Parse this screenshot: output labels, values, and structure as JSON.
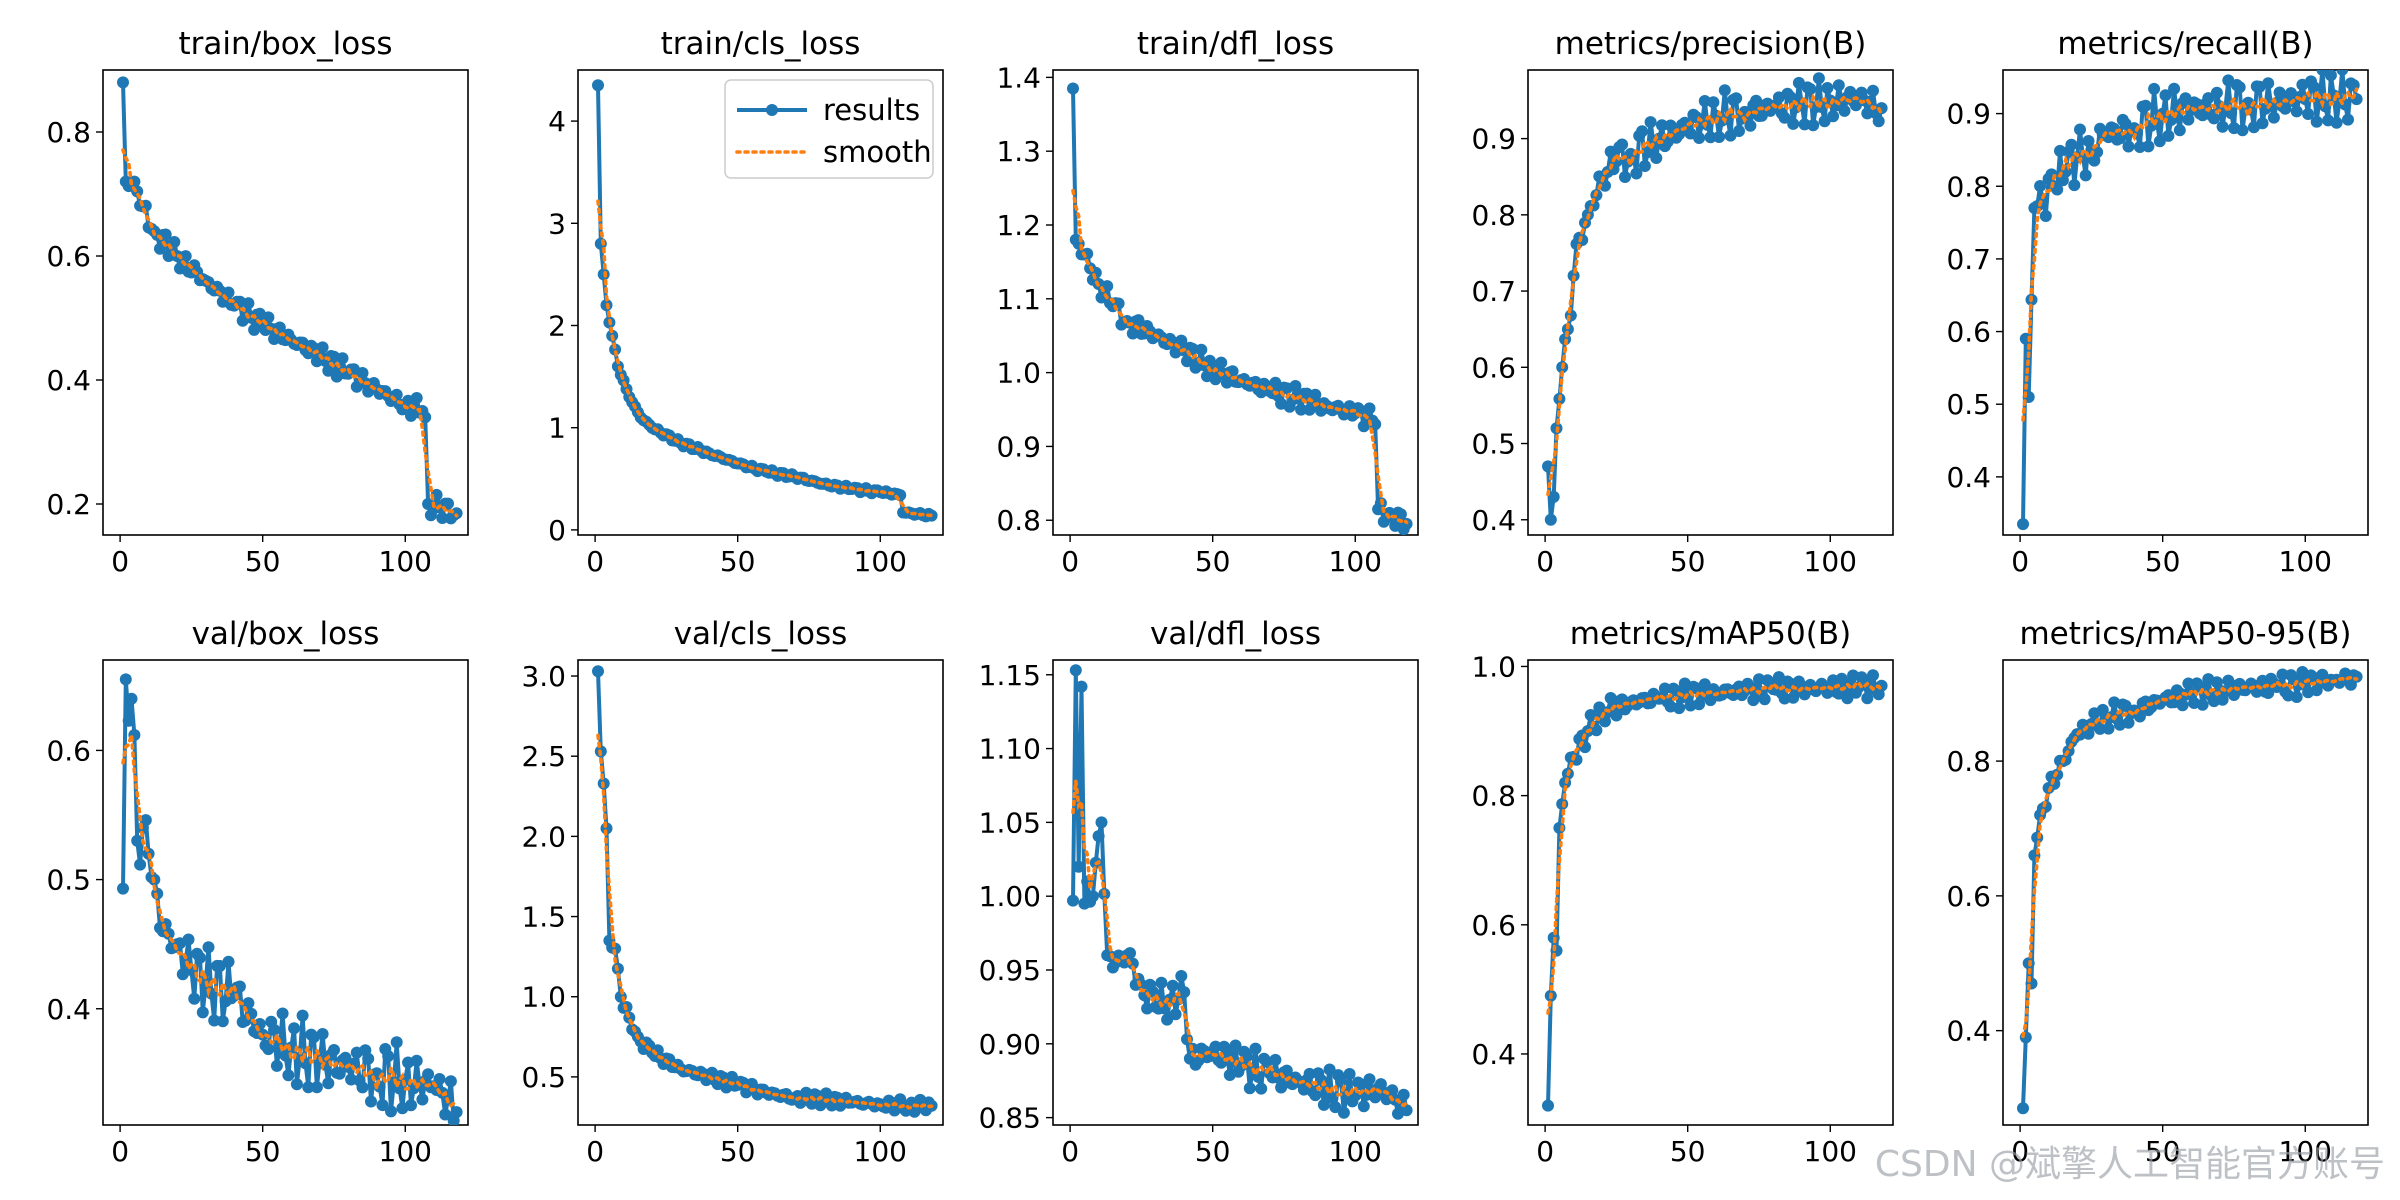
{
  "watermark": "CSDN @斌擎人工智能官方账号",
  "legend": {
    "results": "results",
    "smooth": "smooth"
  },
  "colors": {
    "results": "#1f77b4",
    "smooth": "#ff7f0e"
  },
  "chart_data": [
    {
      "type": "line",
      "title": "train/box_loss",
      "xlim": [
        -6,
        122
      ],
      "ylim": [
        0.15,
        0.9
      ],
      "xticks": [
        0,
        50,
        100
      ],
      "yticks": [
        0.2,
        0.4,
        0.6,
        0.8
      ],
      "ytick_labels": [
        "0.2",
        "0.4",
        "0.6",
        "0.8"
      ],
      "legend": false,
      "anchors": [
        [
          1,
          0.88
        ],
        [
          2,
          0.72
        ],
        [
          5,
          0.72
        ],
        [
          8,
          0.68
        ],
        [
          12,
          0.64
        ],
        [
          20,
          0.6
        ],
        [
          30,
          0.56
        ],
        [
          40,
          0.52
        ],
        [
          50,
          0.49
        ],
        [
          60,
          0.465
        ],
        [
          70,
          0.44
        ],
        [
          80,
          0.41
        ],
        [
          90,
          0.385
        ],
        [
          100,
          0.36
        ],
        [
          106,
          0.35
        ],
        [
          107,
          0.34
        ],
        [
          108,
          0.2
        ],
        [
          112,
          0.195
        ],
        [
          118,
          0.185
        ]
      ],
      "noise": 0.012
    },
    {
      "type": "line",
      "title": "train/cls_loss",
      "xlim": [
        -6,
        122
      ],
      "ylim": [
        -0.05,
        4.5
      ],
      "xticks": [
        0,
        50,
        100
      ],
      "yticks": [
        0,
        1,
        2,
        3,
        4
      ],
      "ytick_labels": [
        "0",
        "1",
        "2",
        "3",
        "4"
      ],
      "legend": true,
      "anchors": [
        [
          1,
          4.35
        ],
        [
          2,
          2.8
        ],
        [
          3,
          2.5
        ],
        [
          4,
          2.2
        ],
        [
          6,
          1.9
        ],
        [
          8,
          1.6
        ],
        [
          12,
          1.3
        ],
        [
          16,
          1.1
        ],
        [
          20,
          1.0
        ],
        [
          30,
          0.85
        ],
        [
          40,
          0.75
        ],
        [
          50,
          0.65
        ],
        [
          60,
          0.57
        ],
        [
          70,
          0.52
        ],
        [
          80,
          0.45
        ],
        [
          90,
          0.4
        ],
        [
          100,
          0.37
        ],
        [
          106,
          0.35
        ],
        [
          107,
          0.34
        ],
        [
          108,
          0.17
        ],
        [
          118,
          0.14
        ]
      ],
      "noise": 0.015
    },
    {
      "type": "line",
      "title": "train/dfl_loss",
      "xlim": [
        -6,
        122
      ],
      "ylim": [
        0.78,
        1.41
      ],
      "xticks": [
        0,
        50,
        100
      ],
      "yticks": [
        0.8,
        0.9,
        1.0,
        1.1,
        1.2,
        1.3,
        1.4
      ],
      "ytick_labels": [
        "0.8",
        "0.9",
        "1.0",
        "1.1",
        "1.2",
        "1.3",
        "1.4"
      ],
      "legend": false,
      "anchors": [
        [
          1,
          1.385
        ],
        [
          2,
          1.18
        ],
        [
          5,
          1.16
        ],
        [
          10,
          1.12
        ],
        [
          15,
          1.09
        ],
        [
          20,
          1.07
        ],
        [
          30,
          1.05
        ],
        [
          40,
          1.03
        ],
        [
          50,
          1.005
        ],
        [
          60,
          0.99
        ],
        [
          70,
          0.975
        ],
        [
          80,
          0.965
        ],
        [
          90,
          0.955
        ],
        [
          100,
          0.945
        ],
        [
          106,
          0.935
        ],
        [
          107,
          0.93
        ],
        [
          108,
          0.815
        ],
        [
          112,
          0.81
        ],
        [
          118,
          0.795
        ]
      ],
      "noise": 0.01
    },
    {
      "type": "line",
      "title": "metrics/precision(B)",
      "xlim": [
        -6,
        122
      ],
      "ylim": [
        0.38,
        0.99
      ],
      "xticks": [
        0,
        50,
        100
      ],
      "yticks": [
        0.4,
        0.5,
        0.6,
        0.7,
        0.8,
        0.9
      ],
      "ytick_labels": [
        "0.4",
        "0.5",
        "0.6",
        "0.7",
        "0.8",
        "0.9"
      ],
      "legend": false,
      "anchors": [
        [
          1,
          0.47
        ],
        [
          2,
          0.4
        ],
        [
          3,
          0.43
        ],
        [
          4,
          0.52
        ],
        [
          6,
          0.6
        ],
        [
          8,
          0.65
        ],
        [
          10,
          0.72
        ],
        [
          12,
          0.77
        ],
        [
          15,
          0.8
        ],
        [
          20,
          0.85
        ],
        [
          25,
          0.87
        ],
        [
          30,
          0.88
        ],
        [
          40,
          0.9
        ],
        [
          50,
          0.915
        ],
        [
          60,
          0.93
        ],
        [
          70,
          0.935
        ],
        [
          80,
          0.94
        ],
        [
          90,
          0.945
        ],
        [
          100,
          0.95
        ],
        [
          110,
          0.952
        ],
        [
          118,
          0.94
        ]
      ],
      "noise": 0.02
    },
    {
      "type": "line",
      "title": "metrics/recall(B)",
      "xlim": [
        -6,
        122
      ],
      "ylim": [
        0.32,
        0.96
      ],
      "xticks": [
        0,
        50,
        100
      ],
      "yticks": [
        0.4,
        0.5,
        0.6,
        0.7,
        0.8,
        0.9
      ],
      "ytick_labels": [
        "0.4",
        "0.5",
        "0.6",
        "0.7",
        "0.8",
        "0.9"
      ],
      "legend": false,
      "anchors": [
        [
          1,
          0.335
        ],
        [
          2,
          0.59
        ],
        [
          3,
          0.51
        ],
        [
          5,
          0.77
        ],
        [
          8,
          0.78
        ],
        [
          12,
          0.8
        ],
        [
          16,
          0.82
        ],
        [
          20,
          0.84
        ],
        [
          25,
          0.85
        ],
        [
          30,
          0.87
        ],
        [
          40,
          0.88
        ],
        [
          50,
          0.9
        ],
        [
          60,
          0.905
        ],
        [
          70,
          0.91
        ],
        [
          80,
          0.915
        ],
        [
          90,
          0.915
        ],
        [
          100,
          0.92
        ],
        [
          110,
          0.925
        ],
        [
          118,
          0.92
        ]
      ],
      "noise": 0.025
    },
    {
      "type": "line",
      "title": "val/box_loss",
      "xlim": [
        -6,
        122
      ],
      "ylim": [
        0.31,
        0.67
      ],
      "xticks": [
        0,
        50,
        100
      ],
      "yticks": [
        0.4,
        0.5,
        0.6
      ],
      "ytick_labels": [
        "0.4",
        "0.5",
        "0.6"
      ],
      "legend": false,
      "anchors": [
        [
          1,
          0.493
        ],
        [
          2,
          0.655
        ],
        [
          4,
          0.64
        ],
        [
          6,
          0.53
        ],
        [
          8,
          0.54
        ],
        [
          10,
          0.52
        ],
        [
          12,
          0.5
        ],
        [
          15,
          0.46
        ],
        [
          20,
          0.45
        ],
        [
          25,
          0.43
        ],
        [
          30,
          0.42
        ],
        [
          40,
          0.41
        ],
        [
          50,
          0.38
        ],
        [
          60,
          0.37
        ],
        [
          70,
          0.36
        ],
        [
          80,
          0.355
        ],
        [
          90,
          0.35
        ],
        [
          100,
          0.345
        ],
        [
          110,
          0.34
        ],
        [
          115,
          0.33
        ],
        [
          118,
          0.32
        ]
      ],
      "noise": 0.018
    },
    {
      "type": "line",
      "title": "val/cls_loss",
      "xlim": [
        -6,
        122
      ],
      "ylim": [
        0.2,
        3.1
      ],
      "xticks": [
        0,
        50,
        100
      ],
      "yticks": [
        0.5,
        1.0,
        1.5,
        2.0,
        2.5,
        3.0
      ],
      "ytick_labels": [
        "0.5",
        "1.0",
        "1.5",
        "2.0",
        "2.5",
        "3.0"
      ],
      "legend": false,
      "anchors": [
        [
          1,
          3.03
        ],
        [
          2,
          2.53
        ],
        [
          3,
          2.33
        ],
        [
          4,
          2.05
        ],
        [
          5,
          1.35
        ],
        [
          7,
          1.3
        ],
        [
          9,
          1.0
        ],
        [
          12,
          0.87
        ],
        [
          15,
          0.75
        ],
        [
          20,
          0.65
        ],
        [
          30,
          0.55
        ],
        [
          40,
          0.5
        ],
        [
          50,
          0.45
        ],
        [
          60,
          0.4
        ],
        [
          70,
          0.37
        ],
        [
          80,
          0.36
        ],
        [
          90,
          0.34
        ],
        [
          100,
          0.33
        ],
        [
          110,
          0.32
        ],
        [
          118,
          0.32
        ]
      ],
      "noise": 0.025
    },
    {
      "type": "line",
      "title": "val/dfl_loss",
      "xlim": [
        -6,
        122
      ],
      "ylim": [
        0.845,
        1.16
      ],
      "xticks": [
        0,
        50,
        100
      ],
      "yticks": [
        0.85,
        0.9,
        0.95,
        1.0,
        1.05,
        1.1,
        1.15
      ],
      "ytick_labels": [
        "0.85",
        "0.90",
        "0.95",
        "1.00",
        "1.05",
        "1.10",
        "1.15"
      ],
      "legend": false,
      "anchors": [
        [
          1,
          0.997
        ],
        [
          2,
          1.153
        ],
        [
          3,
          1.02
        ],
        [
          4,
          1.142
        ],
        [
          5,
          0.995
        ],
        [
          8,
          1.0
        ],
        [
          11,
          1.05
        ],
        [
          13,
          0.96
        ],
        [
          16,
          0.955
        ],
        [
          20,
          0.96
        ],
        [
          25,
          0.94
        ],
        [
          30,
          0.925
        ],
        [
          35,
          0.93
        ],
        [
          40,
          0.935
        ],
        [
          42,
          0.89
        ],
        [
          50,
          0.895
        ],
        [
          60,
          0.885
        ],
        [
          70,
          0.88
        ],
        [
          80,
          0.875
        ],
        [
          90,
          0.87
        ],
        [
          100,
          0.865
        ],
        [
          108,
          0.87
        ],
        [
          112,
          0.865
        ],
        [
          118,
          0.855
        ]
      ],
      "noise": 0.009
    },
    {
      "type": "line",
      "title": "metrics/mAP50(B)",
      "xlim": [
        -6,
        122
      ],
      "ylim": [
        0.29,
        1.01
      ],
      "xticks": [
        0,
        50,
        100
      ],
      "yticks": [
        0.4,
        0.6,
        0.8,
        1.0
      ],
      "ytick_labels": [
        "0.4",
        "0.6",
        "0.8",
        "1.0"
      ],
      "legend": false,
      "anchors": [
        [
          1,
          0.32
        ],
        [
          2,
          0.49
        ],
        [
          3,
          0.58
        ],
        [
          4,
          0.56
        ],
        [
          5,
          0.75
        ],
        [
          7,
          0.82
        ],
        [
          10,
          0.86
        ],
        [
          15,
          0.9
        ],
        [
          20,
          0.93
        ],
        [
          30,
          0.945
        ],
        [
          40,
          0.95
        ],
        [
          50,
          0.955
        ],
        [
          60,
          0.96
        ],
        [
          70,
          0.962
        ],
        [
          80,
          0.965
        ],
        [
          90,
          0.965
        ],
        [
          100,
          0.968
        ],
        [
          110,
          0.968
        ],
        [
          118,
          0.97
        ]
      ],
      "noise": 0.012
    },
    {
      "type": "line",
      "title": "metrics/mAP50-95(B)",
      "xlim": [
        -6,
        122
      ],
      "ylim": [
        0.26,
        0.95
      ],
      "xticks": [
        0,
        50,
        100
      ],
      "yticks": [
        0.4,
        0.6,
        0.8
      ],
      "ytick_labels": [
        "0.4",
        "0.6",
        "0.8"
      ],
      "legend": false,
      "anchors": [
        [
          1,
          0.285
        ],
        [
          2,
          0.39
        ],
        [
          3,
          0.5
        ],
        [
          4,
          0.47
        ],
        [
          5,
          0.66
        ],
        [
          7,
          0.72
        ],
        [
          10,
          0.76
        ],
        [
          15,
          0.8
        ],
        [
          20,
          0.84
        ],
        [
          25,
          0.855
        ],
        [
          30,
          0.865
        ],
        [
          40,
          0.875
        ],
        [
          50,
          0.89
        ],
        [
          60,
          0.9
        ],
        [
          70,
          0.905
        ],
        [
          80,
          0.91
        ],
        [
          90,
          0.91
        ],
        [
          100,
          0.915
        ],
        [
          110,
          0.92
        ],
        [
          118,
          0.925
        ]
      ],
      "noise": 0.012
    }
  ]
}
